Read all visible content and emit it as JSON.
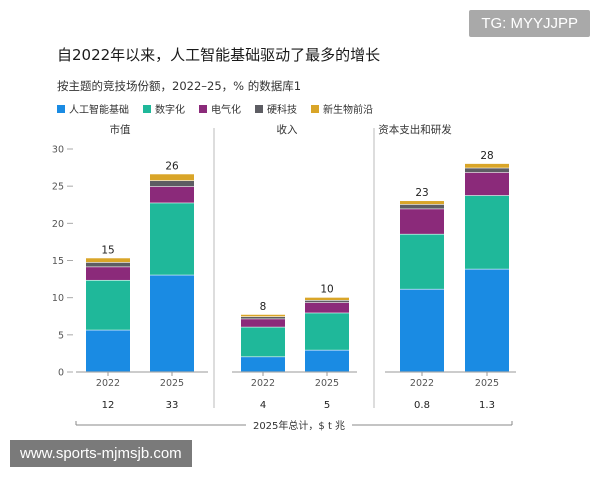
{
  "badge": "TG: MYYJJPP",
  "watermark": "www.sports-mjmsjb.com",
  "chart_data": {
    "type": "bar",
    "title": "自2022年以来，人工智能基础驱动了最多的增长",
    "subtitle": "按主题的竞技场份额，2022–25，% 的数据库1",
    "y_ticks": [
      "30",
      "25",
      "20",
      "15",
      "10",
      "5",
      "0"
    ],
    "ylim": [
      0,
      30
    ],
    "legend": [
      {
        "name": "人工智能基础",
        "color": "#1a8be3"
      },
      {
        "name": "数字化",
        "color": "#1fb89a"
      },
      {
        "name": "电气化",
        "color": "#8b2a7a"
      },
      {
        "name": "硬科技",
        "color": "#5d5d63"
      },
      {
        "name": "新生物前沿",
        "color": "#d9a528"
      }
    ],
    "footer_label": "2025年总计，$ t 兆",
    "panels": [
      {
        "name": "市值",
        "bars": [
          {
            "category": "2022",
            "total_label": "15",
            "footer_value": "12",
            "values": [
              5.6,
              6.7,
              1.8,
              0.6,
              0.6
            ]
          },
          {
            "category": "2025",
            "total_label": "26",
            "footer_value": "33",
            "values": [
              13.0,
              9.7,
              2.2,
              0.8,
              0.9
            ]
          }
        ]
      },
      {
        "name": "收入",
        "bars": [
          {
            "category": "2022",
            "total_label": "8",
            "footer_value": "4",
            "values": [
              2.0,
              4.0,
              1.1,
              0.3,
              0.3
            ]
          },
          {
            "category": "2025",
            "total_label": "10",
            "footer_value": "5",
            "values": [
              2.9,
              5.0,
              1.4,
              0.3,
              0.4
            ]
          }
        ]
      },
      {
        "name": "资本支出和研发",
        "bars": [
          {
            "category": "2022",
            "total_label": "23",
            "footer_value": "0.8",
            "values": [
              11.1,
              7.4,
              3.4,
              0.6,
              0.5
            ]
          },
          {
            "category": "2025",
            "total_label": "28",
            "footer_value": "1.3",
            "values": [
              13.8,
              9.9,
              3.1,
              0.6,
              0.6
            ]
          }
        ]
      }
    ]
  }
}
